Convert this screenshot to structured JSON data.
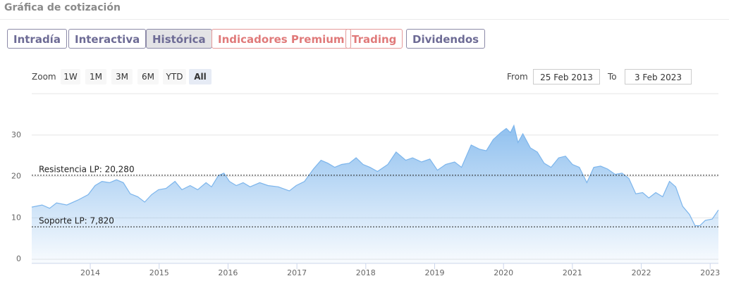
{
  "header": {
    "title": "Gráfica de cotización"
  },
  "tabs": [
    {
      "label": "Intradía",
      "style": "normal"
    },
    {
      "label": "Interactiva",
      "style": "normal"
    },
    {
      "label": "Histórica",
      "style": "active"
    },
    {
      "label": "Indicadores Premium",
      "style": "premium"
    },
    {
      "label": "Trading",
      "style": "premium"
    },
    {
      "label": "Dividendos",
      "style": "normal"
    }
  ],
  "zoom": {
    "label": "Zoom",
    "buttons": [
      "1W",
      "1M",
      "3M",
      "6M",
      "YTD",
      "All"
    ],
    "selected": 5
  },
  "range": {
    "from_label": "From",
    "from": "25 Feb 2013",
    "to_label": "To",
    "to": "3 Feb 2023"
  },
  "chart_data": {
    "type": "area",
    "x": [
      2013.15,
      2013.3,
      2013.41,
      2013.51,
      2013.66,
      2013.82,
      2013.97,
      2014.07,
      2014.17,
      2014.28,
      2014.38,
      2014.48,
      2014.58,
      2014.69,
      2014.79,
      2014.89,
      2014.99,
      2015.1,
      2015.23,
      2015.33,
      2015.45,
      2015.56,
      2015.68,
      2015.76,
      2015.86,
      2015.94,
      2016.02,
      2016.12,
      2016.22,
      2016.32,
      2016.46,
      2016.58,
      2016.73,
      2016.89,
      2016.99,
      2017.11,
      2017.24,
      2017.35,
      2017.45,
      2017.55,
      2017.65,
      2017.76,
      2017.86,
      2017.96,
      2018.06,
      2018.17,
      2018.32,
      2018.44,
      2018.58,
      2018.68,
      2018.81,
      2018.93,
      2019.04,
      2019.16,
      2019.29,
      2019.39,
      2019.53,
      2019.65,
      2019.75,
      2019.85,
      2019.96,
      2020.04,
      2020.1,
      2020.15,
      2020.21,
      2020.28,
      2020.39,
      2020.49,
      2020.59,
      2020.69,
      2020.8,
      2020.9,
      2021.0,
      2021.1,
      2021.21,
      2021.31,
      2021.41,
      2021.51,
      2021.62,
      2021.72,
      2021.82,
      2021.92,
      2022.02,
      2022.11,
      2022.21,
      2022.31,
      2022.41,
      2022.5,
      2022.6,
      2022.7,
      2022.78,
      2022.85,
      2022.93,
      2023.03,
      2023.12
    ],
    "series": [
      {
        "color": "#7cb5ec",
        "values": [
          12.6,
          13.1,
          12.3,
          13.6,
          13.1,
          14.3,
          15.6,
          17.8,
          18.8,
          18.5,
          19.2,
          18.5,
          15.8,
          15.1,
          13.8,
          15.6,
          16.8,
          17.1,
          18.8,
          16.8,
          17.8,
          16.8,
          18.5,
          17.5,
          20.2,
          20.8,
          18.8,
          17.8,
          18.5,
          17.5,
          18.5,
          17.8,
          17.5,
          16.5,
          17.8,
          18.8,
          21.8,
          23.9,
          23.2,
          22.2,
          22.9,
          23.2,
          24.5,
          22.9,
          22.2,
          21.2,
          22.9,
          25.9,
          23.9,
          24.5,
          23.5,
          24.2,
          21.5,
          22.9,
          23.5,
          22.2,
          27.6,
          26.6,
          26.2,
          28.9,
          30.6,
          31.6,
          30.6,
          32.3,
          28.2,
          30.3,
          26.9,
          25.9,
          23.2,
          22.2,
          24.5,
          24.9,
          22.9,
          22.2,
          18.5,
          22.2,
          22.5,
          21.8,
          20.5,
          20.8,
          19.5,
          15.8,
          16.1,
          14.8,
          16.1,
          15.1,
          18.8,
          17.5,
          12.8,
          10.8,
          8.1,
          8.1,
          9.4,
          9.7,
          11.9
        ]
      }
    ],
    "xlim": [
      2013.15,
      2023.12
    ],
    "xticks": [
      2014,
      2015,
      2016,
      2017,
      2018,
      2019,
      2020,
      2021,
      2022,
      2023
    ],
    "ylim": [
      -1,
      40
    ],
    "yticks": [
      0,
      10,
      20,
      30
    ],
    "grid": true,
    "annotations": [
      {
        "label": "Resistencia LP: 20,280",
        "value": 20.28
      },
      {
        "label": "Soporte LP: 7,820",
        "value": 7.82
      }
    ]
  }
}
